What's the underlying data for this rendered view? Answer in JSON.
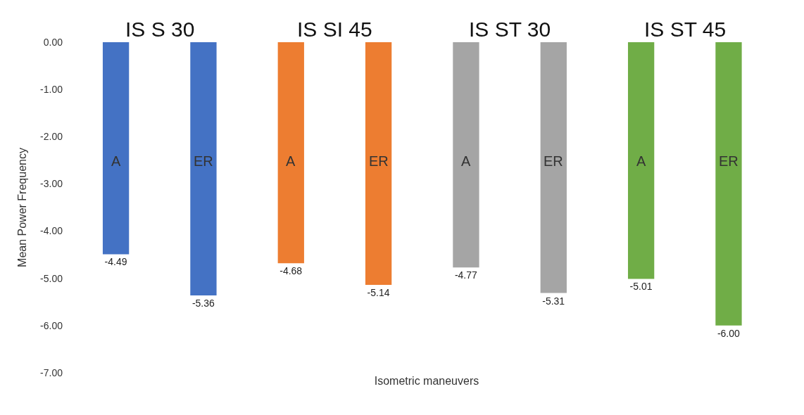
{
  "chart_data": {
    "type": "bar",
    "xlabel": "Isometric maneuvers",
    "ylabel": "Mean Power Frequency",
    "categories": [
      "A",
      "ER",
      "A",
      "ER",
      "A",
      "ER",
      "A",
      "ER"
    ],
    "values": [
      -4.49,
      -5.36,
      -4.68,
      -5.14,
      -4.77,
      -5.31,
      -5.01,
      -6.0
    ],
    "value_labels": [
      "-4.49",
      "-5.36",
      "-4.68",
      "-5.14",
      "-4.77",
      "-5.31",
      "-5.01",
      "-6.00"
    ],
    "colors": [
      "#4472c4",
      "#4472c4",
      "#ed7d31",
      "#ed7d31",
      "#a5a5a5",
      "#a5a5a5",
      "#70ad47",
      "#70ad47"
    ],
    "annotations": [
      "IS S 30",
      "IS SI 45",
      "IS ST 30",
      "IS ST 45"
    ],
    "ylim": [
      -7,
      0
    ],
    "yticks": [
      {
        "value": 0,
        "label": "0.00"
      },
      {
        "value": -1,
        "label": "-1.00"
      },
      {
        "value": -2,
        "label": "-2.00"
      },
      {
        "value": -3,
        "label": "-3.00"
      },
      {
        "value": -4,
        "label": "-4.00"
      },
      {
        "value": -5,
        "label": "-5.00"
      },
      {
        "value": -6,
        "label": "-6.00"
      },
      {
        "value": -7,
        "label": "-7.00"
      }
    ]
  }
}
